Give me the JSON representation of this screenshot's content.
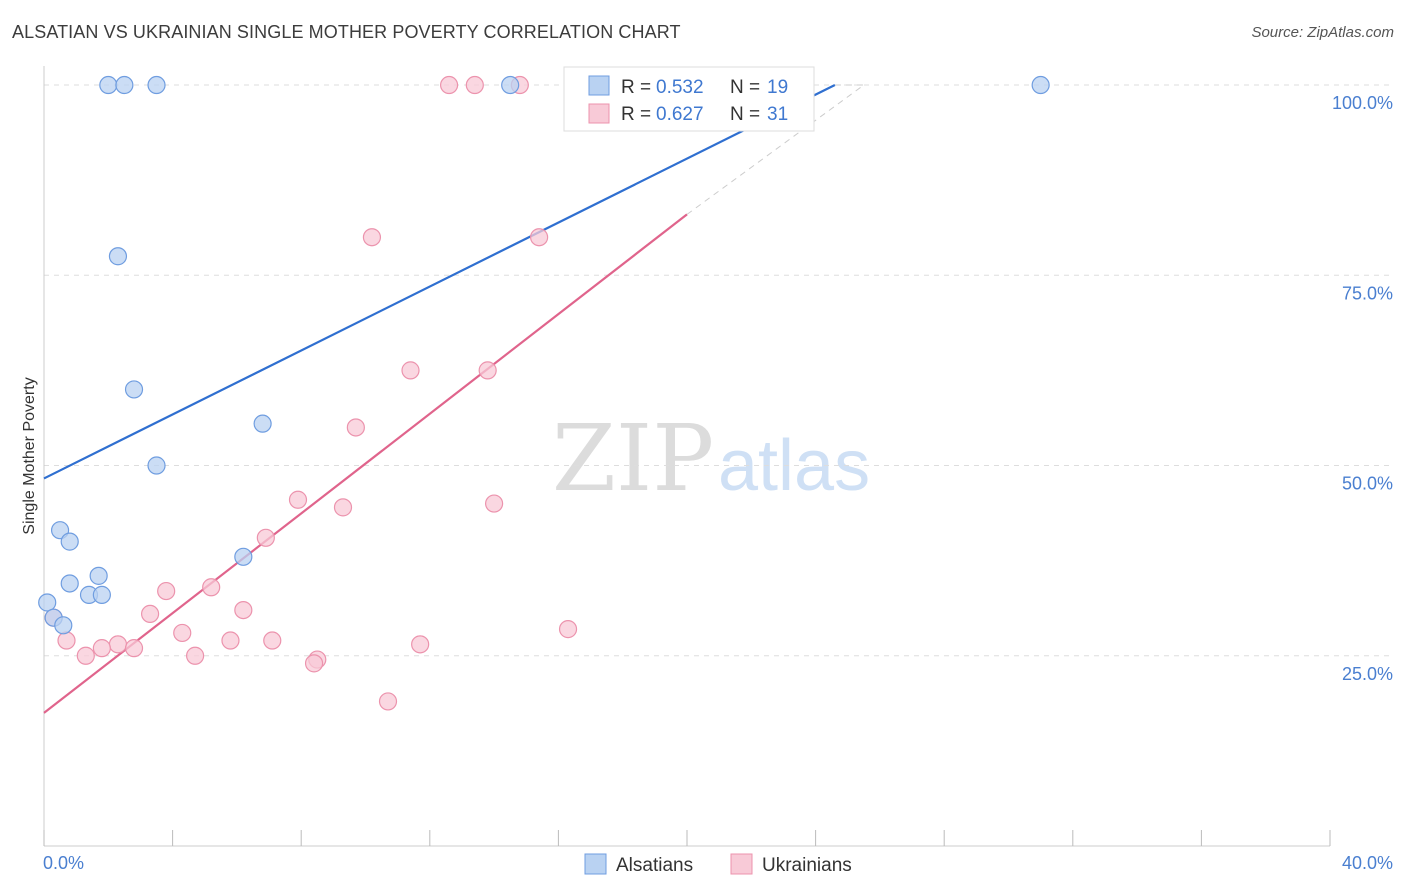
{
  "title": "ALSATIAN VS UKRAINIAN SINGLE MOTHER POVERTY CORRELATION CHART",
  "source": "Source: ZipAtlas.com",
  "watermark": {
    "left": "ZIP",
    "right": "atlas"
  },
  "colors": {
    "alsatians_fill": "#b9d2f2",
    "alsatians_stroke": "#6f9de0",
    "alsatians_line": "#2f6fd0",
    "ukrainians_fill": "#f8cad7",
    "ukrainians_stroke": "#ec93ad",
    "ukrainians_line": "#e0648c",
    "grid": "#dddddd",
    "tick_text": "#4a7fd0"
  },
  "legend": {
    "r_label": "R =",
    "n_label": "N =",
    "alsatians": {
      "r": "0.532",
      "n": "19"
    },
    "ukrainians": {
      "r": "0.627",
      "n": "31"
    }
  },
  "chart_data": {
    "type": "scatter",
    "title": "ALSATIAN VS UKRAINIAN SINGLE MOTHER POVERTY CORRELATION CHART",
    "xlabel": "",
    "ylabel": "Single Mother Poverty",
    "xlim": [
      0,
      40
    ],
    "ylim": [
      0,
      102.5
    ],
    "x_tick_labels": [
      "0.0%",
      "40.0%"
    ],
    "y_ticks": [
      25,
      50,
      75,
      100
    ],
    "y_tick_labels": [
      "25.0%",
      "50.0%",
      "75.0%",
      "100.0%"
    ],
    "grid": true,
    "legend_position": "top-center",
    "series": [
      {
        "name": "Alsatians",
        "points": [
          {
            "x": 2.0,
            "y": 100.0
          },
          {
            "x": 2.5,
            "y": 100.0
          },
          {
            "x": 3.5,
            "y": 100.0
          },
          {
            "x": 14.5,
            "y": 100.0
          },
          {
            "x": 31.0,
            "y": 100.0
          },
          {
            "x": 2.3,
            "y": 77.5
          },
          {
            "x": 2.8,
            "y": 60.0
          },
          {
            "x": 6.8,
            "y": 55.5
          },
          {
            "x": 3.5,
            "y": 50.0
          },
          {
            "x": 0.5,
            "y": 41.5
          },
          {
            "x": 0.8,
            "y": 40.0
          },
          {
            "x": 6.2,
            "y": 38.0
          },
          {
            "x": 1.7,
            "y": 35.5
          },
          {
            "x": 0.8,
            "y": 34.5
          },
          {
            "x": 1.4,
            "y": 33.0
          },
          {
            "x": 1.8,
            "y": 33.0
          },
          {
            "x": 0.1,
            "y": 32.0
          },
          {
            "x": 0.3,
            "y": 30.0
          },
          {
            "x": 0.6,
            "y": 29.0
          }
        ],
        "trend": {
          "x0": 0,
          "y0": 48.3,
          "x1": 24.6,
          "y1": 100.0,
          "dash_to": {
            "x": 25.5,
            "y": 100.0
          }
        }
      },
      {
        "name": "Ukrainians",
        "points": [
          {
            "x": 12.6,
            "y": 100.0
          },
          {
            "x": 13.4,
            "y": 100.0
          },
          {
            "x": 14.8,
            "y": 100.0
          },
          {
            "x": 10.2,
            "y": 80.0
          },
          {
            "x": 15.4,
            "y": 80.0
          },
          {
            "x": 11.4,
            "y": 62.5
          },
          {
            "x": 13.8,
            "y": 62.5
          },
          {
            "x": 9.7,
            "y": 55.0
          },
          {
            "x": 7.9,
            "y": 45.5
          },
          {
            "x": 14.0,
            "y": 45.0
          },
          {
            "x": 9.3,
            "y": 44.5
          },
          {
            "x": 6.9,
            "y": 40.5
          },
          {
            "x": 3.8,
            "y": 33.5
          },
          {
            "x": 5.2,
            "y": 34.0
          },
          {
            "x": 6.2,
            "y": 31.0
          },
          {
            "x": 3.3,
            "y": 30.5
          },
          {
            "x": 0.3,
            "y": 30.0
          },
          {
            "x": 4.3,
            "y": 28.0
          },
          {
            "x": 16.3,
            "y": 28.5
          },
          {
            "x": 0.7,
            "y": 27.0
          },
          {
            "x": 5.8,
            "y": 27.0
          },
          {
            "x": 7.1,
            "y": 27.0
          },
          {
            "x": 2.3,
            "y": 26.5
          },
          {
            "x": 1.8,
            "y": 26.0
          },
          {
            "x": 2.8,
            "y": 26.0
          },
          {
            "x": 11.7,
            "y": 26.5
          },
          {
            "x": 1.3,
            "y": 25.0
          },
          {
            "x": 4.7,
            "y": 25.0
          },
          {
            "x": 8.5,
            "y": 24.5
          },
          {
            "x": 8.4,
            "y": 24.0
          },
          {
            "x": 10.7,
            "y": 19.0
          }
        ],
        "trend": {
          "x0": 0,
          "y0": 17.5,
          "x1": 20.0,
          "y1": 83.0,
          "dash_to": {
            "x": 25.5,
            "y": 100.0
          }
        }
      }
    ]
  },
  "bottom_legend": {
    "items": [
      "Alsatians",
      "Ukrainians"
    ]
  }
}
